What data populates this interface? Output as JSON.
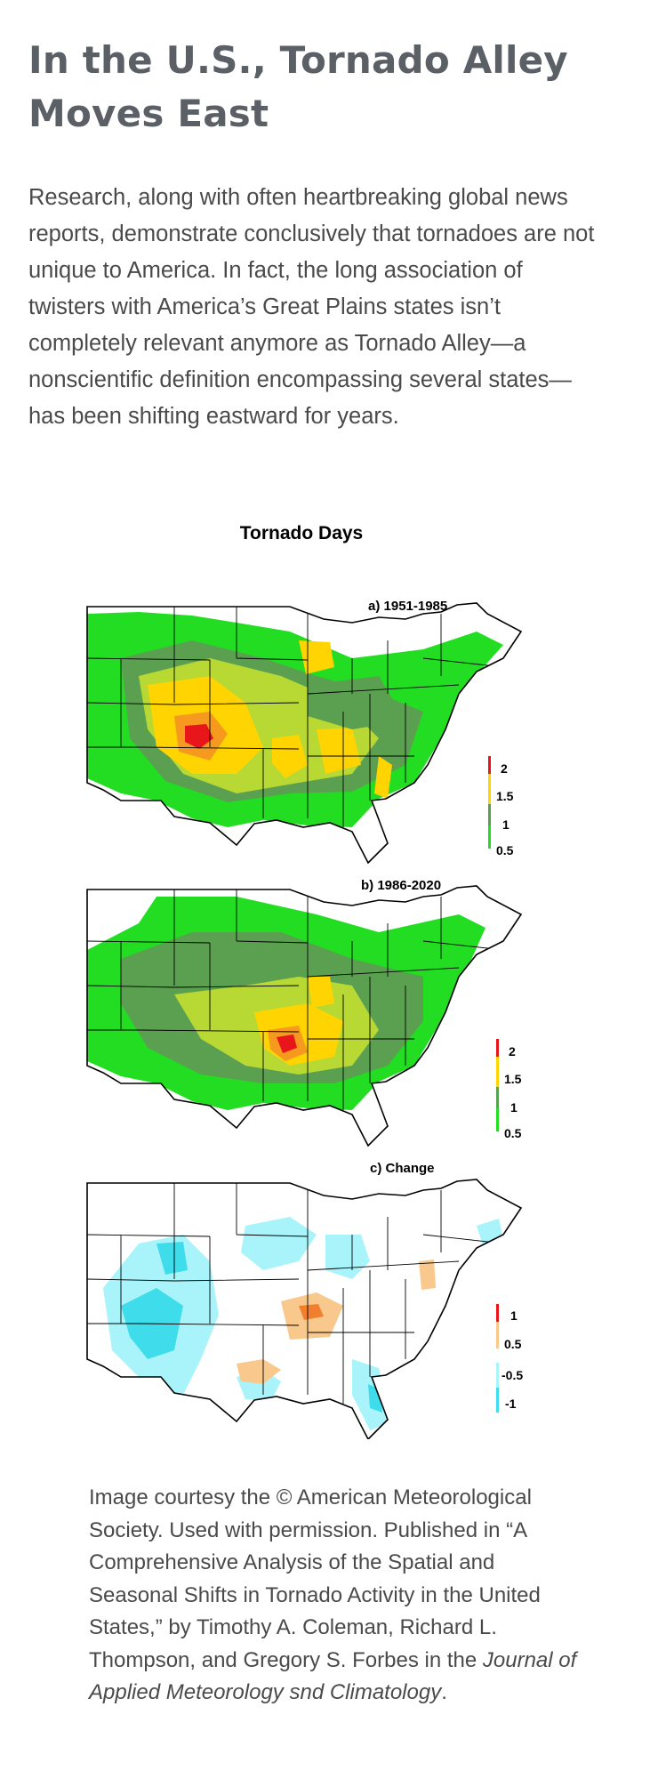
{
  "article": {
    "title": "In the U.S., Tornado Alley Moves East",
    "intro": "Research, along with often heartbreaking global news reports, demonstrate conclusively that tornadoes are not unique to America. In fact, the long association of twisters with America’s Great Plains states isn’t completely relevant anymore as Tornado Alley—a nonscientific definition encompassing several states—has been shifting eastward for years."
  },
  "figure": {
    "title": "Tornado Days",
    "panels": [
      {
        "label": "a) 1951-1985",
        "legend": [
          "2",
          "1.5",
          "1",
          "0.5"
        ]
      },
      {
        "label": "b) 1986-2020",
        "legend": [
          "2",
          "1.5",
          "1",
          "0.5"
        ]
      },
      {
        "label": "c) Change",
        "legend": [
          "1",
          "0.5",
          "-0.5",
          "-1"
        ]
      }
    ],
    "colors": {
      "bright_green": "#22dd22",
      "dark_green": "#5aa050",
      "yellow_green": "#b8d833",
      "yellow": "#ffd400",
      "orange": "#f59a1e",
      "red": "#e8161a",
      "light_cyan": "#a8f4fa",
      "cyan": "#3fdcec",
      "light_orange": "#f8c88c",
      "dark_orange": "#f08030"
    }
  },
  "caption": {
    "text": "Image courtesy the © American Meteorological Society. Used with permission. Published in “A Comprehensive Analysis of the Spatial and Seasonal Shifts in Tornado Activity in the United States,” by Timothy A. Coleman, Richard L. Thompson, and Gregory S. Forbes in the ",
    "journal": "Journal of Applied Meteorology snd Climatology",
    "end": "."
  }
}
